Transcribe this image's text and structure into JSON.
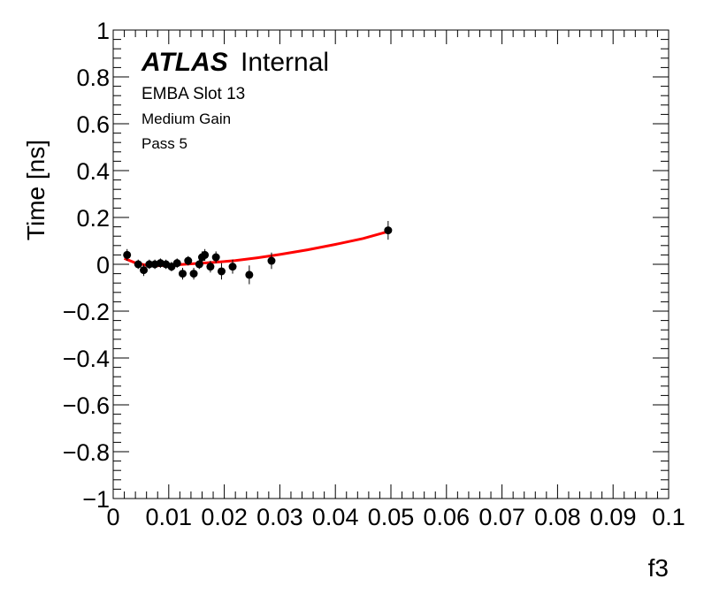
{
  "chart_data": {
    "type": "scatter",
    "title": "",
    "xlabel": "f3",
    "ylabel": "Time [ns]",
    "xlim": [
      0,
      0.1
    ],
    "ylim": [
      -1,
      1
    ],
    "x_tick_labels": [
      "0",
      "0.01",
      "0.02",
      "0.03",
      "0.04",
      "0.05",
      "0.06",
      "0.07",
      "0.08",
      "0.09",
      "0.1"
    ],
    "y_tick_labels": [
      "−1",
      "−0.8",
      "−0.6",
      "−0.4",
      "−0.2",
      "0",
      "0.2",
      "0.4",
      "0.6",
      "0.8",
      "1"
    ],
    "x_ticks": [
      0,
      0.01,
      0.02,
      0.03,
      0.04,
      0.05,
      0.06,
      0.07,
      0.08,
      0.09,
      0.1
    ],
    "y_ticks": [
      -1,
      -0.8,
      -0.6,
      -0.4,
      -0.2,
      0,
      0.2,
      0.4,
      0.6,
      0.8,
      1
    ],
    "grid": false,
    "annotations": {
      "atlas_bold": "ATLAS",
      "atlas_suffix": "Internal",
      "lines": [
        "EMBA Slot 13",
        "Medium Gain",
        "Pass 5"
      ]
    },
    "series": [
      {
        "kind": "points_with_errors",
        "color": "#000000",
        "points": [
          {
            "x": 0.0025,
            "y": 0.04,
            "err": 0.025
          },
          {
            "x": 0.0045,
            "y": 0.0,
            "err": 0.02
          },
          {
            "x": 0.0055,
            "y": -0.025,
            "err": 0.025
          },
          {
            "x": 0.0065,
            "y": 0.0,
            "err": 0.02
          },
          {
            "x": 0.0075,
            "y": 0.0,
            "err": 0.02
          },
          {
            "x": 0.0085,
            "y": 0.005,
            "err": 0.02
          },
          {
            "x": 0.0095,
            "y": 0.0,
            "err": 0.02
          },
          {
            "x": 0.0105,
            "y": -0.01,
            "err": 0.02
          },
          {
            "x": 0.0115,
            "y": 0.005,
            "err": 0.02
          },
          {
            "x": 0.0125,
            "y": -0.04,
            "err": 0.025
          },
          {
            "x": 0.0135,
            "y": 0.015,
            "err": 0.02
          },
          {
            "x": 0.0145,
            "y": -0.04,
            "err": 0.025
          },
          {
            "x": 0.0155,
            "y": 0.0,
            "err": 0.02
          },
          {
            "x": 0.016,
            "y": 0.03,
            "err": 0.025
          },
          {
            "x": 0.0165,
            "y": 0.04,
            "err": 0.025
          },
          {
            "x": 0.0175,
            "y": -0.01,
            "err": 0.025
          },
          {
            "x": 0.0185,
            "y": 0.03,
            "err": 0.025
          },
          {
            "x": 0.0195,
            "y": -0.03,
            "err": 0.035
          },
          {
            "x": 0.0215,
            "y": -0.01,
            "err": 0.03
          },
          {
            "x": 0.0245,
            "y": -0.045,
            "err": 0.04
          },
          {
            "x": 0.0285,
            "y": 0.015,
            "err": 0.035
          },
          {
            "x": 0.0495,
            "y": 0.145,
            "err": 0.04
          }
        ]
      },
      {
        "kind": "fit_line",
        "color": "#ff0000",
        "points": [
          {
            "x": 0.002,
            "y": 0.025
          },
          {
            "x": 0.004,
            "y": 0.006
          },
          {
            "x": 0.006,
            "y": -0.004
          },
          {
            "x": 0.008,
            "y": -0.006
          },
          {
            "x": 0.01,
            "y": -0.004
          },
          {
            "x": 0.014,
            "y": 0.002
          },
          {
            "x": 0.018,
            "y": 0.008
          },
          {
            "x": 0.022,
            "y": 0.016
          },
          {
            "x": 0.026,
            "y": 0.028
          },
          {
            "x": 0.03,
            "y": 0.042
          },
          {
            "x": 0.035,
            "y": 0.062
          },
          {
            "x": 0.04,
            "y": 0.085
          },
          {
            "x": 0.045,
            "y": 0.11
          },
          {
            "x": 0.0495,
            "y": 0.14
          }
        ]
      }
    ]
  }
}
